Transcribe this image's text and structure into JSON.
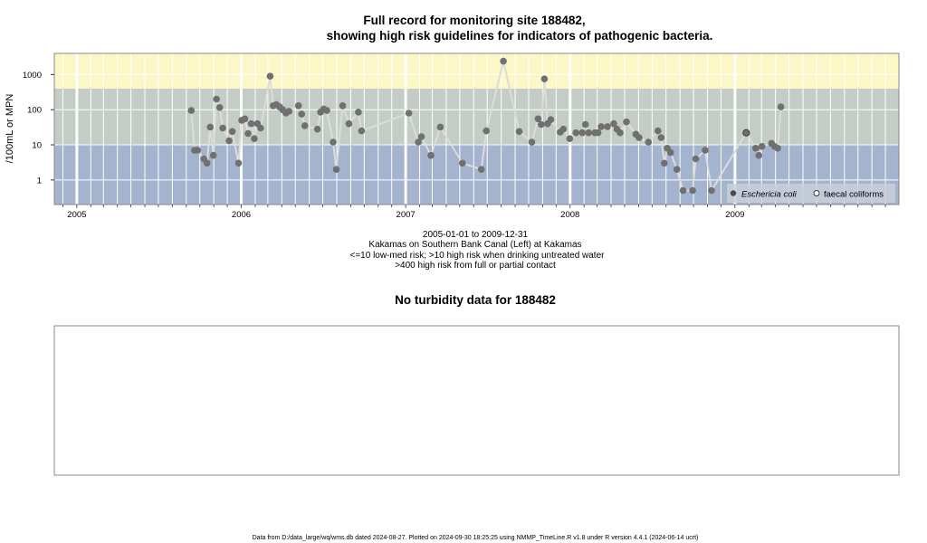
{
  "chart_data": {
    "type": "scatter",
    "title_line1": "Full record for monitoring site 188482,",
    "title_line2": "showing high risk guidelines for indicators of pathogenic bacteria.",
    "ylabel": "/100mL or MPN",
    "y_scale": "log",
    "ylim": [
      0.2,
      4000
    ],
    "y_ticks": [
      1,
      10,
      100,
      1000
    ],
    "y_tick_labels": [
      "1",
      "10",
      "100",
      "1000"
    ],
    "xlim": [
      "2004-11-12",
      "2009-12-31"
    ],
    "x_ticks": [
      "2005-01-01",
      "2006-01-01",
      "2007-01-01",
      "2008-01-01",
      "2009-01-01"
    ],
    "x_tick_labels": [
      "2005",
      "2006",
      "2007",
      "2008",
      "2009"
    ],
    "grid": true,
    "risk_bands": [
      {
        "from": 0.2,
        "to": 10,
        "color": "#a4b4ce",
        "meaning": "low-med risk"
      },
      {
        "from": 10,
        "to": 400,
        "color": "#c4cdc5",
        "meaning": "high risk when drinking untreated water"
      },
      {
        "from": 400,
        "to": 4000,
        "color": "#fcf7c7",
        "meaning": "high risk from full or partial contact"
      }
    ],
    "legend_position": "bottom-right",
    "legend": [
      {
        "label": "Eschericia coli",
        "marker": "filled",
        "italic": true
      },
      {
        "label": "faecal coliforms",
        "marker": "open",
        "italic": false
      }
    ],
    "series": [
      {
        "name": "Eschericia coli",
        "color": "#707070",
        "line_color": "#dcdcdc",
        "points": [
          [
            "2005-09-12",
            95
          ],
          [
            "2005-09-19",
            7
          ],
          [
            "2005-09-26",
            7
          ],
          [
            "2005-10-10",
            4
          ],
          [
            "2005-10-17",
            3
          ],
          [
            "2005-10-24",
            32
          ],
          [
            "2005-10-31",
            5
          ],
          [
            "2005-11-07",
            200
          ],
          [
            "2005-11-14",
            115
          ],
          [
            "2005-11-21",
            30
          ],
          [
            "2005-12-05",
            13
          ],
          [
            "2005-12-12",
            24
          ],
          [
            "2005-12-26",
            3
          ],
          [
            "2006-01-02",
            50
          ],
          [
            "2006-01-09",
            55
          ],
          [
            "2006-01-16",
            21
          ],
          [
            "2006-01-23",
            40
          ],
          [
            "2006-01-30",
            15
          ],
          [
            "2006-02-06",
            40
          ],
          [
            "2006-02-13",
            30
          ],
          [
            "2006-03-06",
            900
          ],
          [
            "2006-03-13",
            130
          ],
          [
            "2006-03-20",
            140
          ],
          [
            "2006-03-27",
            120
          ],
          [
            "2006-04-03",
            100
          ],
          [
            "2006-04-10",
            80
          ],
          [
            "2006-04-17",
            90
          ],
          [
            "2006-05-08",
            130
          ],
          [
            "2006-05-15",
            75
          ],
          [
            "2006-05-22",
            35
          ],
          [
            "2006-06-19",
            28
          ],
          [
            "2006-06-26",
            85
          ],
          [
            "2006-07-03",
            105
          ],
          [
            "2006-07-10",
            95
          ],
          [
            "2006-07-24",
            12
          ],
          [
            "2006-07-31",
            2
          ],
          [
            "2006-08-14",
            130
          ],
          [
            "2006-08-28",
            40
          ],
          [
            "2006-09-18",
            85
          ],
          [
            "2006-09-25",
            25
          ],
          [
            "2007-01-08",
            80
          ],
          [
            "2007-01-29",
            12
          ],
          [
            "2007-02-05",
            17
          ],
          [
            "2007-02-26",
            5
          ],
          [
            "2007-03-19",
            32
          ],
          [
            "2007-05-07",
            3
          ],
          [
            "2007-06-18",
            2
          ],
          [
            "2007-06-29",
            25
          ],
          [
            "2007-08-06",
            2400
          ],
          [
            "2007-09-10",
            24
          ],
          [
            "2007-10-08",
            12
          ],
          [
            "2007-10-22",
            55
          ],
          [
            "2007-10-29",
            38
          ],
          [
            "2007-11-05",
            750
          ],
          [
            "2007-11-12",
            40
          ],
          [
            "2007-11-19",
            52
          ],
          [
            "2007-12-10",
            23
          ],
          [
            "2007-12-17",
            28
          ],
          [
            "2007-12-31",
            15
          ],
          [
            "2008-01-14",
            22
          ],
          [
            "2008-01-28",
            22
          ],
          [
            "2008-02-04",
            38
          ],
          [
            "2008-02-11",
            22
          ],
          [
            "2008-02-25",
            22
          ],
          [
            "2008-03-03",
            22
          ],
          [
            "2008-03-10",
            33
          ],
          [
            "2008-03-24",
            33
          ],
          [
            "2008-04-07",
            40
          ],
          [
            "2008-04-14",
            28
          ],
          [
            "2008-04-21",
            22
          ],
          [
            "2008-05-05",
            45
          ],
          [
            "2008-05-26",
            20
          ],
          [
            "2008-06-02",
            16
          ],
          [
            "2008-06-23",
            12
          ],
          [
            "2008-07-14",
            25
          ],
          [
            "2008-07-21",
            16
          ],
          [
            "2008-07-28",
            3
          ],
          [
            "2008-08-04",
            8
          ],
          [
            "2008-08-11",
            6
          ],
          [
            "2008-08-25",
            2
          ],
          [
            "2008-09-08",
            0.5
          ],
          [
            "2008-09-29",
            0.5
          ],
          [
            "2008-10-06",
            4
          ],
          [
            "2008-10-27",
            7
          ],
          [
            "2008-11-10",
            0.5
          ],
          [
            "2009-01-26",
            22
          ],
          [
            "2009-02-16",
            8
          ],
          [
            "2009-02-23",
            5
          ],
          [
            "2009-03-02",
            9
          ],
          [
            "2009-03-23",
            11
          ],
          [
            "2009-03-30",
            9
          ],
          [
            "2009-04-06",
            8
          ],
          [
            "2009-04-13",
            120
          ]
        ]
      },
      {
        "name": "faecal coliforms",
        "points": [
          [
            "2009-01-26",
            22
          ]
        ]
      }
    ],
    "caption": [
      "2005-01-01 to 2009-12-31",
      "Kakamas on Southern Bank Canal (Left) at Kakamas",
      "<=10 low-med risk; >10 high risk when drinking untreated water",
      ">400 high risk from full or partial contact"
    ]
  },
  "turbidity": {
    "title": "No turbidity data for 188482"
  },
  "footer": "Data from D:/data_large/wq/wms.db dated 2024-08-27. Plotted on 2024-09-30 18:25:25 using NMMP_TimeLine.R v1.8 under R version 4.4.1 (2024-06-14 ucrt)"
}
